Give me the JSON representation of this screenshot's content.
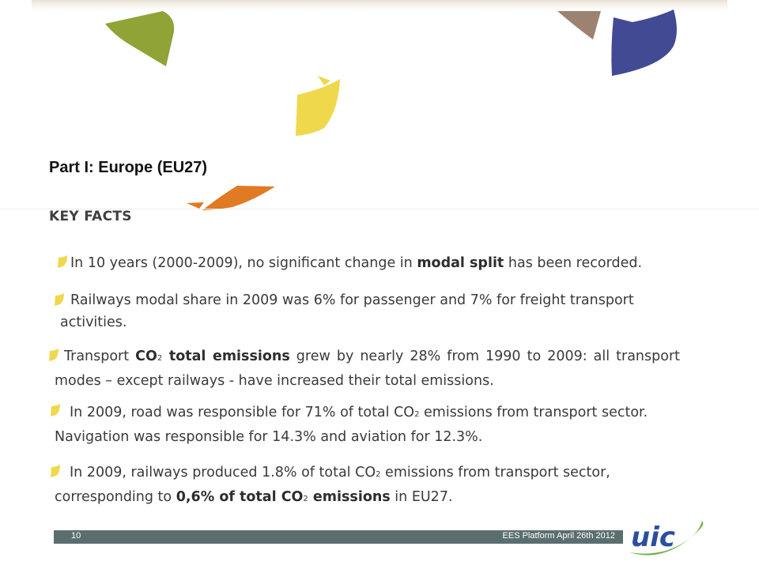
{
  "slide": {
    "title": "Part I: Europe (EU27)",
    "subtitle": "KEY FACTS"
  },
  "bullets": [
    {
      "pre": "In 10 years (2000-2009), no significant change in ",
      "bold": "modal split",
      "post": " has been recorded."
    },
    {
      "text": "Railways modal share in 2009 was 6% for passenger and 7% for freight transport activities."
    },
    {
      "pre": "Transport ",
      "bold1": "CO",
      "sub1": "2",
      "bold2": " total emissions",
      "post": " grew by nearly 28% from 1990 to 2009: all transport modes – except railways - have increased their total emissions."
    },
    {
      "pre": "In 2009, road was responsible for 71% of total CO",
      "sub": "2",
      "post": " emissions from transport sector. Navigation was responsible for 14.3% and aviation for 12.3%."
    },
    {
      "pre": "In 2009, railways produced 1.8% of total CO",
      "sub": "2",
      "mid": " emissions from transport sector, corresponding to ",
      "bold1": "0,6% of total CO",
      "sub2": "2",
      "bold2": " emissions",
      "post": " in EU27."
    }
  ],
  "footer": {
    "page_number": "10",
    "event": "EES Platform April 26th 2012"
  },
  "logo": {
    "text": "uic"
  },
  "colors": {
    "olive": "#8fa336",
    "taupe": "#9c8371",
    "navy": "#414a93",
    "yellow": "#f0d84c",
    "orange": "#e07a23",
    "footer": "#5b6e6f",
    "logo_blue": "#2a4f9e",
    "logo_green": "#6db33f"
  }
}
